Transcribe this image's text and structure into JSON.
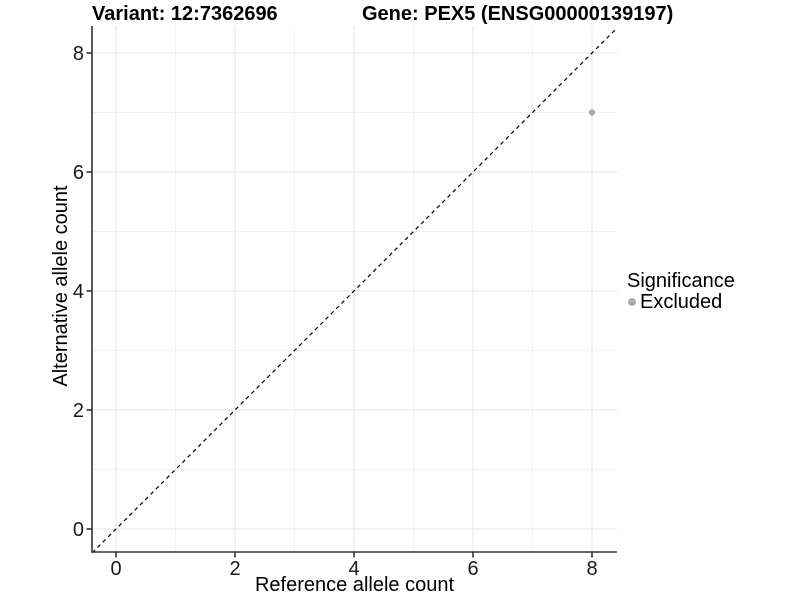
{
  "chart_data": {
    "type": "scatter",
    "title_left": "Variant: 12:7362696",
    "title_right": "Gene: PEX5 (ENSG00000139197)",
    "xlabel": "Reference allele count",
    "ylabel": "Alternative allele count",
    "xlim": [
      -0.4,
      8.4
    ],
    "ylim": [
      -0.4,
      8.4
    ],
    "xticks": [
      0,
      2,
      4,
      6,
      8
    ],
    "yticks": [
      0,
      2,
      4,
      6,
      8
    ],
    "minor_grid_x": [
      1,
      3,
      5,
      7
    ],
    "minor_grid_y": [
      1,
      3,
      5,
      7
    ],
    "grid": true,
    "series": [
      {
        "name": "Excluded",
        "color": "#ababab",
        "points": [
          {
            "x": 8,
            "y": 7
          }
        ]
      }
    ],
    "reference_line": {
      "type": "identity",
      "from": [
        -0.4,
        -0.4
      ],
      "to": [
        8.4,
        8.4
      ],
      "style": "dashed",
      "color": "#000000"
    },
    "legend": {
      "title": "Significance",
      "position": "right",
      "items": [
        {
          "label": "Excluded",
          "color": "#ababab"
        }
      ]
    }
  },
  "colors": {
    "background": "#ffffff",
    "axis_line": "#333333",
    "tick_text": "#1a1a1a",
    "grid_major": "#e5e5e5",
    "grid_minor": "#f1f1f1"
  }
}
